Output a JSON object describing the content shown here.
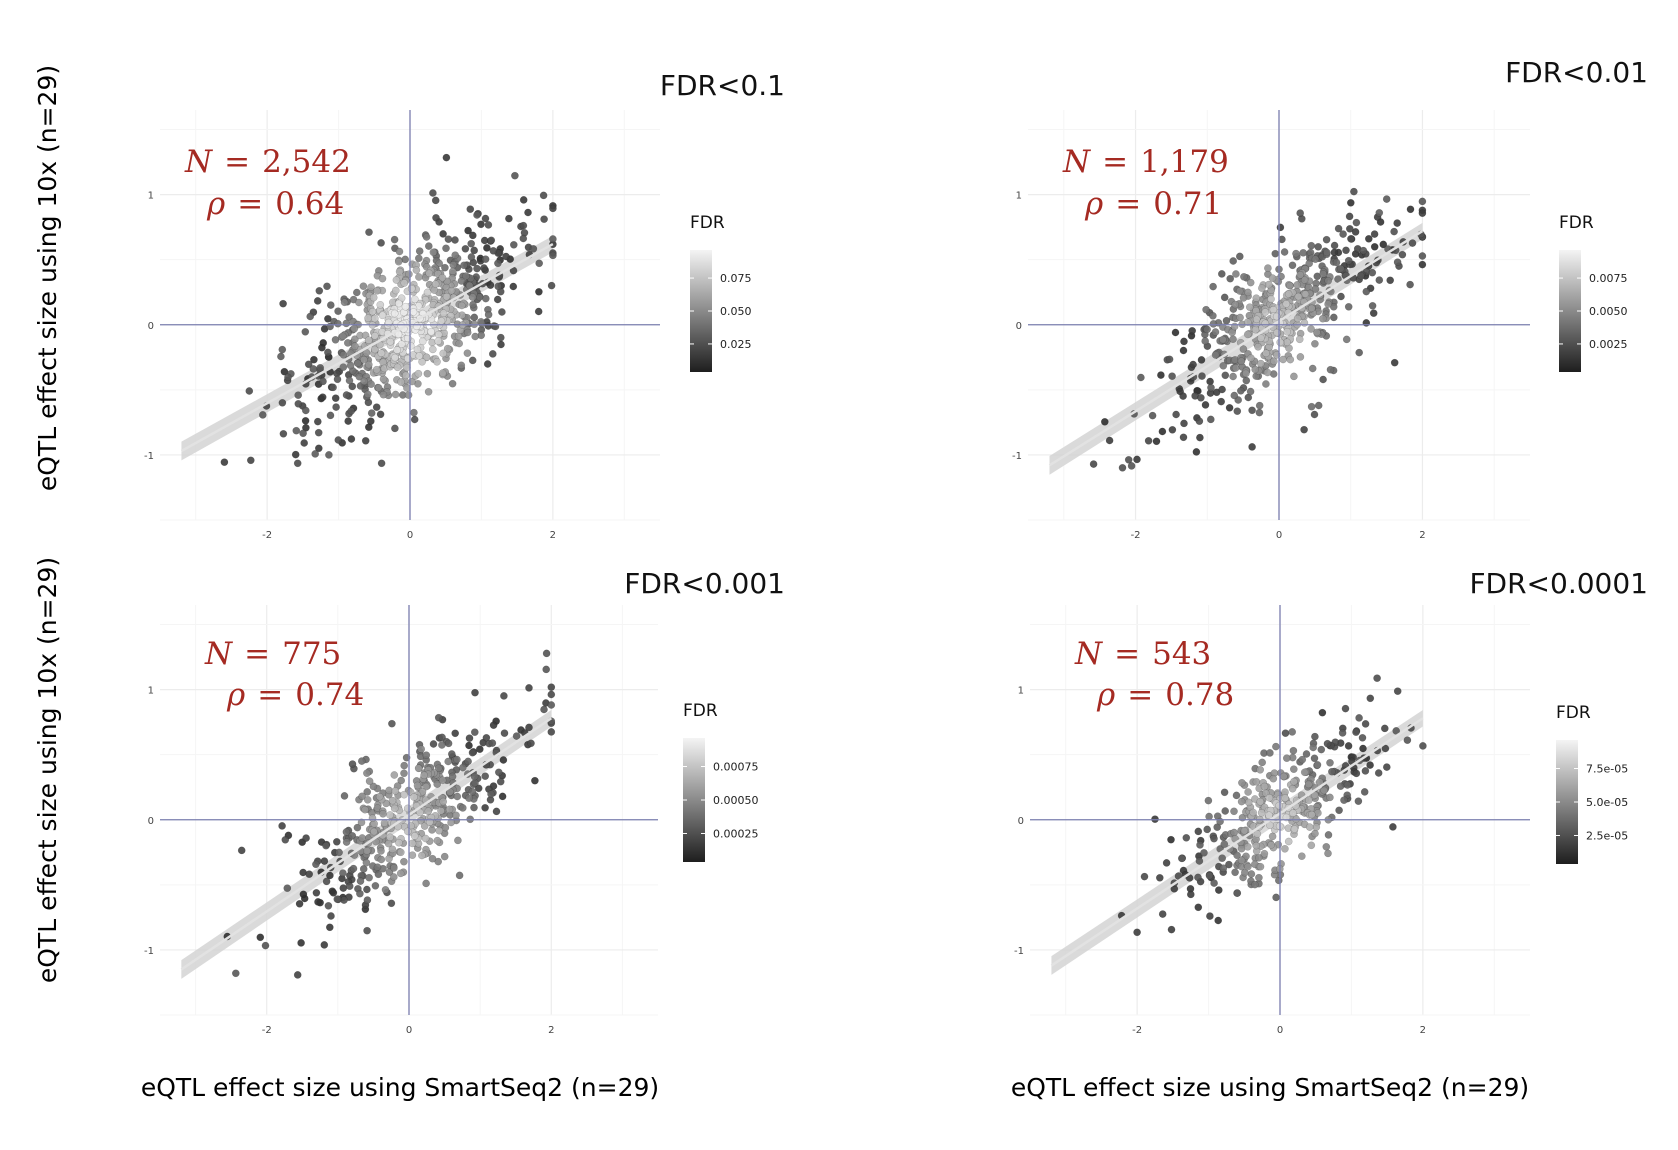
{
  "figure": {
    "y_axis_label": "eQTL effect size using 10x (n=29)",
    "x_axis_label": "eQTL effect size using SmartSeq2 (n=29)"
  },
  "chart_data": [
    {
      "type": "scatter",
      "title": "FDR<0.1",
      "xlabel": "eQTL effect size using SmartSeq2 (n=29)",
      "ylabel": "eQTL effect size using 10x (n=29)",
      "xlim": [
        -3.5,
        3.5
      ],
      "ylim": [
        -1.5,
        1.65
      ],
      "xticks": [
        "-2",
        "0",
        "2"
      ],
      "yticks": [
        "1",
        "0",
        "-1"
      ],
      "grid": true,
      "annotation": {
        "n_label": "N",
        "n_value": "2,542",
        "rho_label": "ρ",
        "rho_value": "0.64"
      },
      "legend": {
        "title": "FDR",
        "ticks": [
          "0.075",
          "0.050",
          "0.025"
        ],
        "position": "right"
      },
      "n_points_drawn": 700,
      "regression_line": {
        "x0": -3.2,
        "y0": -0.97,
        "x1": 2.0,
        "y1": 0.62
      },
      "seed": 11
    },
    {
      "type": "scatter",
      "title": "FDR<0.01",
      "xlabel": "eQTL effect size using SmartSeq2 (n=29)",
      "ylabel": "eQTL effect size using 10x (n=29)",
      "xlim": [
        -3.5,
        3.5
      ],
      "ylim": [
        -1.5,
        1.65
      ],
      "xticks": [
        "-2",
        "0",
        "2"
      ],
      "yticks": [
        "1",
        "0",
        "-1"
      ],
      "grid": true,
      "annotation": {
        "n_label": "N",
        "n_value": "1,179",
        "rho_label": "ρ",
        "rho_value": "0.71"
      },
      "legend": {
        "title": "FDR",
        "ticks": [
          "0.0075",
          "0.0050",
          "0.0025"
        ],
        "position": "right"
      },
      "n_points_drawn": 520,
      "regression_line": {
        "x0": -3.2,
        "y0": -1.08,
        "x1": 2.0,
        "y1": 0.72
      },
      "seed": 23
    },
    {
      "type": "scatter",
      "title": "FDR<0.001",
      "xlabel": "eQTL effect size using SmartSeq2 (n=29)",
      "ylabel": "eQTL effect size using 10x (n=29)",
      "xlim": [
        -3.5,
        3.5
      ],
      "ylim": [
        -1.5,
        1.65
      ],
      "xticks": [
        "-2",
        "0",
        "2"
      ],
      "yticks": [
        "1",
        "0",
        "-1"
      ],
      "grid": true,
      "annotation": {
        "n_label": "N",
        "n_value": "775",
        "rho_label": "ρ",
        "rho_value": "0.74"
      },
      "legend": {
        "title": "FDR",
        "ticks": [
          "0.00075",
          "0.00050",
          "0.00025"
        ],
        "position": "right"
      },
      "n_points_drawn": 430,
      "regression_line": {
        "x0": -3.2,
        "y0": -1.15,
        "x1": 2.0,
        "y1": 0.78
      },
      "seed": 37
    },
    {
      "type": "scatter",
      "title": "FDR<0.0001",
      "xlabel": "eQTL effect size using SmartSeq2 (n=29)",
      "ylabel": "eQTL effect size using 10x (n=29)",
      "xlim": [
        -3.5,
        3.5
      ],
      "ylim": [
        -1.5,
        1.65
      ],
      "xticks": [
        "-2",
        "0",
        "2"
      ],
      "yticks": [
        "1",
        "0",
        "-1"
      ],
      "grid": true,
      "annotation": {
        "n_label": "N",
        "n_value": "543",
        "rho_label": "ρ",
        "rho_value": "0.78"
      },
      "legend": {
        "title": "FDR",
        "ticks": [
          "7.5e-05",
          "5.0e-05",
          "2.5e-05"
        ],
        "position": "right"
      },
      "n_points_drawn": 360,
      "regression_line": {
        "x0": -3.2,
        "y0": -1.12,
        "x1": 2.0,
        "y1": 0.78
      },
      "seed": 53
    }
  ]
}
